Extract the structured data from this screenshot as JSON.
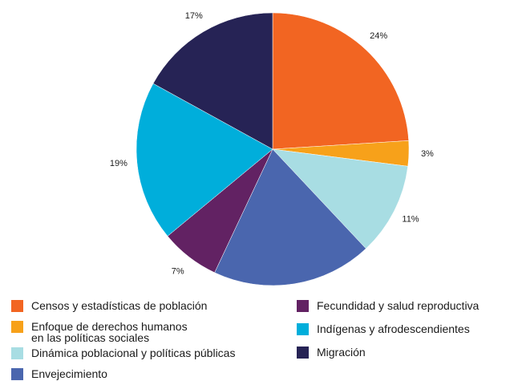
{
  "chart_data": {
    "type": "pie",
    "start_angle_deg": 0,
    "direction": "clockwise",
    "slices": [
      {
        "label": "Censos y estadísticas de población",
        "value": 24,
        "value_label": "24%",
        "color": "#f26522"
      },
      {
        "label": "Enfoque de derechos humanos\nen las políticas sociales",
        "value": 3,
        "value_label": "3%",
        "color": "#f7a11a"
      },
      {
        "label": "Dinámica poblacional y políticas públicas",
        "value": 11,
        "value_label": "11%",
        "color": "#a8dde3"
      },
      {
        "label": "Envejecimiento",
        "value": 19,
        "value_label": "19%",
        "color": "#4a66ae"
      },
      {
        "label": "Fecundidad y salud reproductiva",
        "value": 7,
        "value_label": "7%",
        "color": "#622263"
      },
      {
        "label": "Indígenas y afrodescendientes",
        "value": 19,
        "value_label": "19%",
        "color": "#00aedb"
      },
      {
        "label": "Migración",
        "value": 17,
        "value_label": "17%",
        "color": "#262355"
      }
    ],
    "legend_placement": "bottom"
  }
}
